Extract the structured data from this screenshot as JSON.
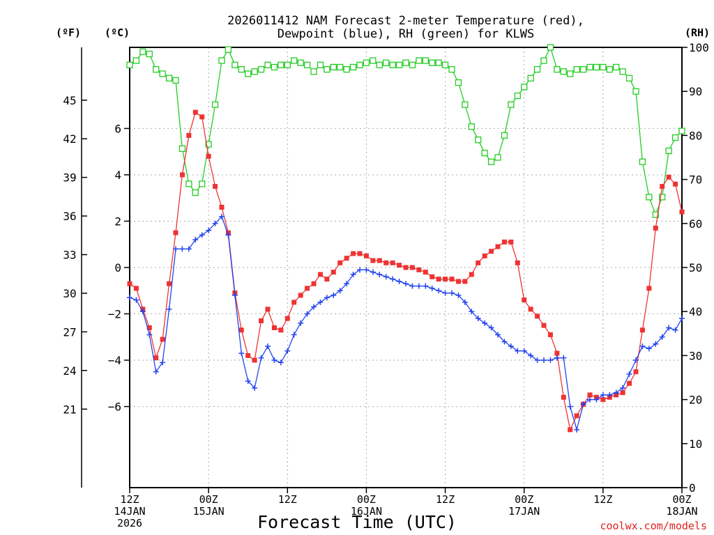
{
  "chart_data": {
    "type": "line",
    "title_lines": [
      "2026011412 NAM Forecast 2-meter Temperature (red),",
      "Dewpoint (blue), RH (green) for KLWS"
    ],
    "xlabel": "Forecast Time (UTC)",
    "credit": "coolwx.com/models",
    "units": {
      "fahrenheit": "(ºF)",
      "celsius": "(ºC)",
      "rh": "(RH)"
    },
    "x_hours_range": [
      0,
      84
    ],
    "celsius_range": [
      -9.5,
      9.5
    ],
    "fahrenheit_ticks": [
      21,
      24,
      27,
      30,
      33,
      36,
      39,
      42,
      45
    ],
    "celsius_ticks": [
      -6,
      -4,
      -2,
      0,
      2,
      4,
      6
    ],
    "rh_range": [
      0,
      100
    ],
    "rh_ticks": [
      0,
      10,
      20,
      30,
      40,
      50,
      60,
      70,
      80,
      90,
      100
    ],
    "x_ticks": [
      {
        "hour": 0,
        "lines": [
          "12Z",
          "14JAN",
          "2026"
        ]
      },
      {
        "hour": 12,
        "lines": [
          "00Z",
          "15JAN"
        ]
      },
      {
        "hour": 24,
        "lines": [
          "12Z"
        ]
      },
      {
        "hour": 36,
        "lines": [
          "00Z",
          "16JAN"
        ]
      },
      {
        "hour": 48,
        "lines": [
          "12Z"
        ]
      },
      {
        "hour": 60,
        "lines": [
          "00Z",
          "17JAN"
        ]
      },
      {
        "hour": 72,
        "lines": [
          "12Z"
        ]
      },
      {
        "hour": 84,
        "lines": [
          "00Z",
          "18JAN"
        ]
      }
    ],
    "grid": true,
    "series": [
      {
        "key": "rh",
        "color": "#22cc22",
        "marker": "open-square",
        "axis": "rh",
        "values": [
          96,
          97,
          99,
          98.5,
          95,
          94,
          93,
          92.5,
          77,
          69,
          67,
          69,
          78,
          87,
          97,
          99.5,
          96,
          95,
          94,
          94.5,
          95,
          96,
          95.5,
          96,
          96,
          97,
          96.5,
          96,
          94.5,
          96,
          95,
          95.5,
          95.5,
          95,
          95.5,
          96,
          96.5,
          97,
          96,
          96.5,
          96,
          96,
          96.5,
          96,
          97,
          97,
          96.5,
          96.5,
          96,
          95,
          92,
          87,
          82,
          79,
          76,
          74,
          75,
          80,
          87,
          89,
          91,
          93,
          95,
          97,
          100,
          95,
          94.5,
          94,
          95,
          95,
          95.5,
          95.5,
          95.5,
          95,
          95.5,
          94.5,
          93,
          90,
          74,
          66,
          62,
          66,
          76.5,
          79.5,
          81
        ]
      },
      {
        "key": "temperature",
        "color": "#ee3333",
        "marker": "filled-square",
        "axis": "celsius",
        "values": [
          -0.7,
          -0.9,
          -1.8,
          -2.6,
          -3.9,
          -3.1,
          -0.7,
          1.5,
          4,
          5.7,
          6.7,
          6.5,
          4.8,
          3.5,
          2.6,
          1.5,
          -1.1,
          -2.7,
          -3.8,
          -4,
          -2.3,
          -1.8,
          -2.6,
          -2.7,
          -2.2,
          -1.5,
          -1.2,
          -0.9,
          -0.7,
          -0.3,
          -0.5,
          -0.2,
          0.2,
          0.4,
          0.6,
          0.6,
          0.5,
          0.3,
          0.3,
          0.2,
          0.2,
          0.1,
          0,
          0,
          -0.1,
          -0.2,
          -0.4,
          -0.5,
          -0.5,
          -0.5,
          -0.6,
          -0.6,
          -0.3,
          0.2,
          0.5,
          0.7,
          0.9,
          1.1,
          1.1,
          0.2,
          -1.4,
          -1.8,
          -2.1,
          -2.5,
          -2.9,
          -3.7,
          -5.6,
          -7,
          -6.4,
          -5.9,
          -5.5,
          -5.6,
          -5.7,
          -5.6,
          -5.5,
          -5.4,
          -5,
          -4.5,
          -2.7,
          -0.9,
          1.7,
          3.5,
          3.9,
          3.6,
          2.4
        ]
      },
      {
        "key": "dewpoint",
        "color": "#2244ee",
        "marker": "plus",
        "axis": "celsius",
        "values": [
          -1.3,
          -1.4,
          -1.9,
          -2.9,
          -4.5,
          -4.1,
          -1.8,
          0.8,
          0.8,
          0.8,
          1.2,
          1.4,
          1.6,
          1.9,
          2.2,
          1.4,
          -1.2,
          -3.7,
          -4.9,
          -5.2,
          -3.9,
          -3.4,
          -4.0,
          -4.1,
          -3.6,
          -2.9,
          -2.4,
          -2.0,
          -1.7,
          -1.5,
          -1.3,
          -1.2,
          -1.0,
          -0.7,
          -0.3,
          -0.1,
          -0.1,
          -0.2,
          -0.3,
          -0.4,
          -0.5,
          -0.6,
          -0.7,
          -0.8,
          -0.8,
          -0.8,
          -0.9,
          -1.0,
          -1.1,
          -1.1,
          -1.2,
          -1.5,
          -1.9,
          -2.2,
          -2.4,
          -2.6,
          -2.9,
          -3.2,
          -3.4,
          -3.6,
          -3.6,
          -3.8,
          -4.0,
          -4.0,
          -4.0,
          -3.9,
          -3.9,
          -6.0,
          -7.0,
          -5.9,
          -5.7,
          -5.7,
          -5.5,
          -5.5,
          -5.4,
          -5.2,
          -4.6,
          -4.0,
          -3.4,
          -3.5,
          -3.3,
          -3.0,
          -2.6,
          -2.7,
          -2.2
        ]
      }
    ]
  }
}
